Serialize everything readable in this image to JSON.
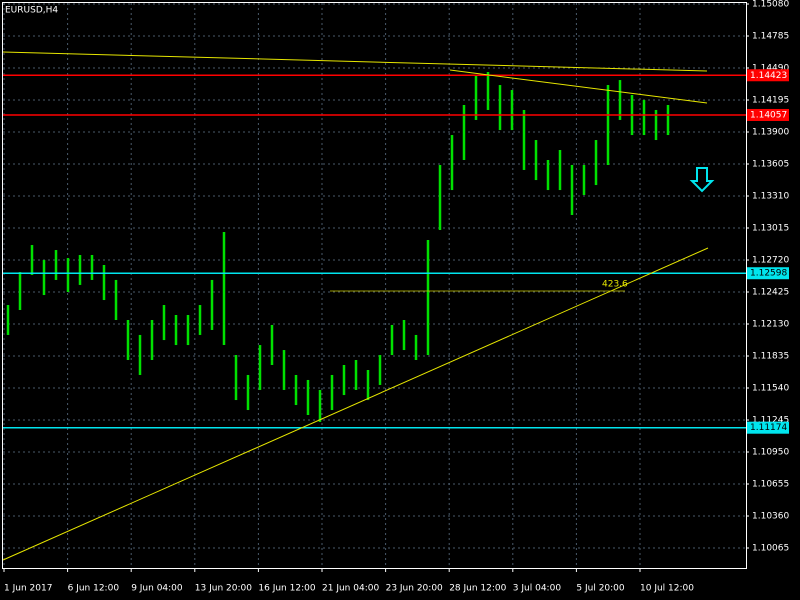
{
  "chart_data": {
    "type": "hlbar",
    "title": "EURUSD,H4",
    "color": "#00e000",
    "grid": true,
    "ylim": [
      1.10065,
      1.1508
    ],
    "yticks": [
      {
        "value": 1.1508,
        "label": "1.15080"
      },
      1.14785,
      {
        "value": 1.1449,
        "label": "1.14490"
      },
      1.14195,
      {
        "value": 1.139,
        "label": "1.13900"
      },
      1.13605,
      {
        "value": 1.1331,
        "label": "1.13310"
      },
      1.13015,
      {
        "value": 1.1272,
        "label": "1.12720"
      },
      1.12425,
      {
        "value": 1.1213,
        "label": "1.12130"
      },
      1.11835,
      {
        "value": 1.1154,
        "label": "1.11540"
      },
      1.11245,
      {
        "value": 1.1095,
        "label": "1.10950"
      },
      1.10655,
      {
        "value": 1.1036,
        "label": "1.10360"
      },
      1.10065
    ],
    "xlabels": [
      "1 Jun 2017",
      "6 Jun 12:00",
      "9 Jun 04:00",
      "13 Jun 20:00",
      "16 Jun 12:00",
      "21 Jun 04:00",
      "23 Jun 20:00",
      "28 Jun 12:00",
      "3 Jul 04:00",
      "5 Jul 20:00",
      "10 Jul 12:00"
    ],
    "high": [
      1.12305,
      1.12609,
      1.12858,
      1.1272,
      1.12812,
      1.12738,
      1.12766,
      1.12766,
      1.12674,
      1.12536,
      1.12167,
      1.12029,
      1.12167,
      1.12305,
      1.12213,
      1.12213,
      1.12305,
      1.12536,
      1.12978,
      1.11844,
      1.1166,
      1.11936,
      1.12121,
      1.1189,
      1.1166,
      1.11614,
      1.11522,
      1.1166,
      1.11752,
      1.11798,
      1.11706,
      1.11844,
      1.12121,
      1.12167,
      1.12029,
      1.12904,
      1.13596,
      1.13872,
      1.14149,
      1.14425,
      1.14453,
      1.14333,
      1.14287,
      1.14103,
      1.13826,
      1.13642,
      1.13734,
      1.13596,
      1.13596,
      1.13826,
      1.14333,
      1.14379,
      1.14241,
      1.14195,
      1.14103,
      1.14149
    ],
    "low": [
      1.12029,
      1.12259,
      1.12582,
      1.12397,
      1.12536,
      1.12425,
      1.1249,
      1.12536,
      1.12351,
      1.12167,
      1.11798,
      1.1166,
      1.11798,
      1.11982,
      1.11936,
      1.11936,
      1.12029,
      1.12075,
      1.11936,
      1.11429,
      1.11337,
      1.11522,
      1.11752,
      1.11522,
      1.11383,
      1.11291,
      1.11227,
      1.11337,
      1.11475,
      1.11522,
      1.11429,
      1.11568,
      1.11844,
      1.1189,
      1.11798,
      1.11844,
      1.12997,
      1.13365,
      1.13642,
      1.14011,
      1.14103,
      1.13918,
      1.13918,
      1.1355,
      1.13457,
      1.13365,
      1.13365,
      1.13135,
      1.13319,
      1.13411,
      1.13596,
      1.14011,
      1.13872,
      1.13872,
      1.13826,
      1.13872
    ],
    "levels": [
      {
        "value": 1.14423,
        "label": "1.14423",
        "color": "#ff0000"
      },
      {
        "value": 1.14057,
        "label": "1.14057",
        "color": "#ff0000"
      },
      {
        "value": 1.12598,
        "label": "1.12598",
        "color": "#00e5ee"
      },
      {
        "value": 1.11174,
        "label": "1.11174",
        "color": "#00e5ee"
      }
    ],
    "annotation": "423.6"
  }
}
